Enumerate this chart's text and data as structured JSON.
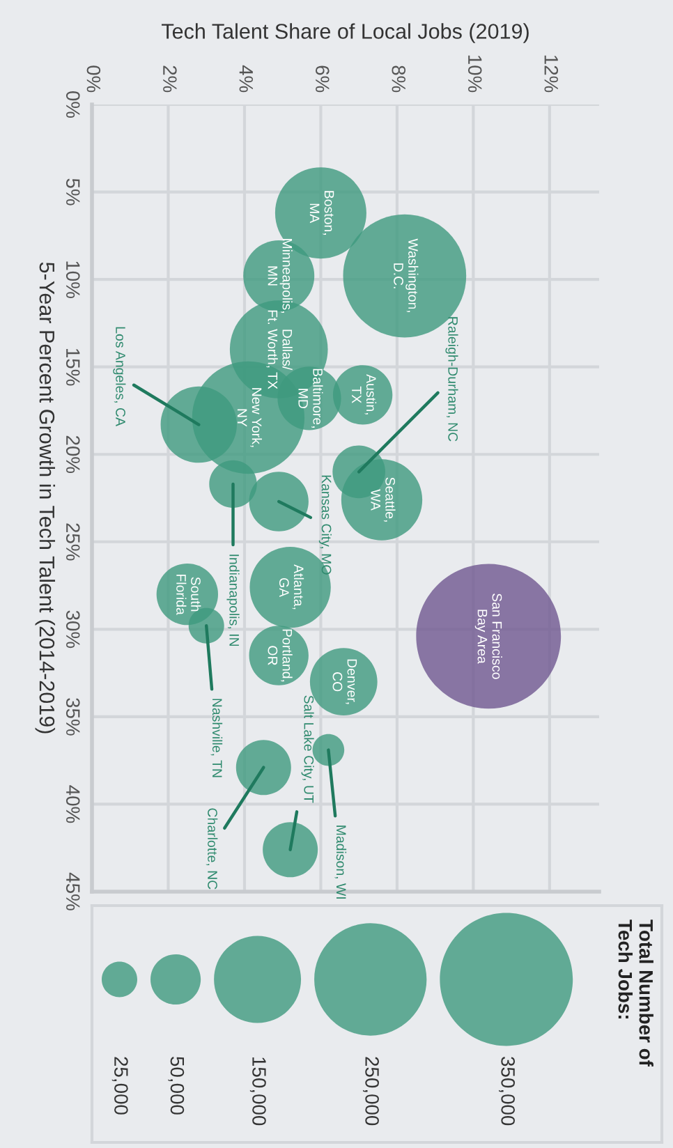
{
  "chart_data": {
    "type": "bubble",
    "xlabel": "Tech Talent Share of Local Jobs (2019)",
    "ylabel": "5-Year Percent Growth in Tech Talent (2014-2019)",
    "legend_title": "Total Number of\nTech Jobs:",
    "x": [
      6.0,
      8.2,
      4.9,
      4.9,
      4.1,
      2.8,
      5.7,
      7.1,
      7.0,
      7.6,
      3.7,
      4.9,
      2.5,
      3.0,
      5.2,
      4.9,
      6.6,
      10.4,
      6.2,
      4.5,
      5.2
    ],
    "values": [
      6.2,
      9.8,
      9.8,
      14.0,
      17.9,
      18.3,
      16.8,
      16.6,
      21.0,
      22.6,
      21.7,
      22.7,
      28.0,
      29.8,
      27.6,
      31.5,
      33.0,
      30.4,
      36.9,
      37.9,
      42.6
    ],
    "sizes": [
      165000,
      300000,
      100000,
      190000,
      250000,
      115000,
      80000,
      70000,
      55000,
      130000,
      45000,
      70000,
      75000,
      25000,
      130000,
      70000,
      90000,
      415000,
      20000,
      60000,
      60000
    ],
    "size_legend": [
      {
        "value": 25000,
        "label": "25,000"
      },
      {
        "value": 50000,
        "label": "50,000"
      },
      {
        "value": 150000,
        "label": "150,000"
      },
      {
        "value": 250000,
        "label": "250,000"
      },
      {
        "value": 350000,
        "label": "350,000"
      }
    ],
    "colors": [
      "#3f9a7e",
      "#3f9a7e",
      "#3f9a7e",
      "#3f9a7e",
      "#3f9a7e",
      "#3f9a7e",
      "#3f9a7e",
      "#3f9a7e",
      "#3f9a7e",
      "#3f9a7e",
      "#3f9a7e",
      "#3f9a7e",
      "#3f9a7e",
      "#3f9a7e",
      "#3f9a7e",
      "#3f9a7e",
      "#3f9a7e",
      "#6f5790",
      "#3f9a7e",
      "#3f9a7e",
      "#3f9a7e"
    ],
    "xlim": [
      0,
      13.3
    ],
    "ylim": [
      45,
      0
    ],
    "xticks": [
      {
        "value": 0,
        "label": "0%"
      },
      {
        "value": 2,
        "label": "2%"
      },
      {
        "value": 4,
        "label": "4%"
      },
      {
        "value": 6,
        "label": "6%"
      },
      {
        "value": 8,
        "label": "8%"
      },
      {
        "value": 10,
        "label": "10%"
      },
      {
        "value": 12,
        "label": "12%"
      }
    ],
    "yticks": [
      {
        "value": 0,
        "label": "0%"
      },
      {
        "value": 5,
        "label": "5%"
      },
      {
        "value": 10,
        "label": "10%"
      },
      {
        "value": 15,
        "label": "15%"
      },
      {
        "value": 20,
        "label": "20%"
      },
      {
        "value": 25,
        "label": "25%"
      },
      {
        "value": 30,
        "label": "30%"
      },
      {
        "value": 35,
        "label": "35%"
      },
      {
        "value": 40,
        "label": "40%"
      },
      {
        "value": 45,
        "label": "45%"
      }
    ],
    "grid": true,
    "annotations": [
      {
        "text": "Boston,\nMA",
        "x": 6.0,
        "y": 6.2
      },
      {
        "text": "Washington,\nD.C.",
        "x": 8.2,
        "y": 9.8
      },
      {
        "text": "Minneapolis,\nMN",
        "x": 4.9,
        "y": 9.8
      },
      {
        "text": "Dallas/\nFt. Worth, TX",
        "x": 4.9,
        "y": 14.0
      },
      {
        "text": "New York,\nNY",
        "x": 4.1,
        "y": 17.9
      },
      {
        "text": "Los Angeles, CA",
        "x": 2.8,
        "y": 18.3
      },
      {
        "text": "Baltimore,\nMD",
        "x": 5.7,
        "y": 16.8
      },
      {
        "text": "Austin,\nTX",
        "x": 7.1,
        "y": 16.6
      },
      {
        "text": "Raleigh-Durham, NC",
        "x": 7.0,
        "y": 21.0
      },
      {
        "text": "Seattle,\nWA",
        "x": 7.6,
        "y": 22.6
      },
      {
        "text": "Indianapolis, IN",
        "x": 3.7,
        "y": 21.7
      },
      {
        "text": "Kansas City, MO",
        "x": 4.9,
        "y": 22.7
      },
      {
        "text": "South\nFlorida",
        "x": 2.5,
        "y": 28.0
      },
      {
        "text": "Nashville, TN",
        "x": 3.0,
        "y": 29.8
      },
      {
        "text": "Atlanta,\nGA",
        "x": 5.2,
        "y": 27.6
      },
      {
        "text": "Portland,\nOR",
        "x": 4.9,
        "y": 31.5
      },
      {
        "text": "Denver,\nCO",
        "x": 6.6,
        "y": 33.0
      },
      {
        "text": "San Francisco\nBay Area",
        "x": 10.4,
        "y": 30.4
      },
      {
        "text": "Madison, WI",
        "x": 6.2,
        "y": 36.9
      },
      {
        "text": "Charlotte, NC",
        "x": 4.5,
        "y": 37.9
      },
      {
        "text": "Salt Lake City, UT",
        "x": 5.2,
        "y": 42.6
      }
    ]
  }
}
